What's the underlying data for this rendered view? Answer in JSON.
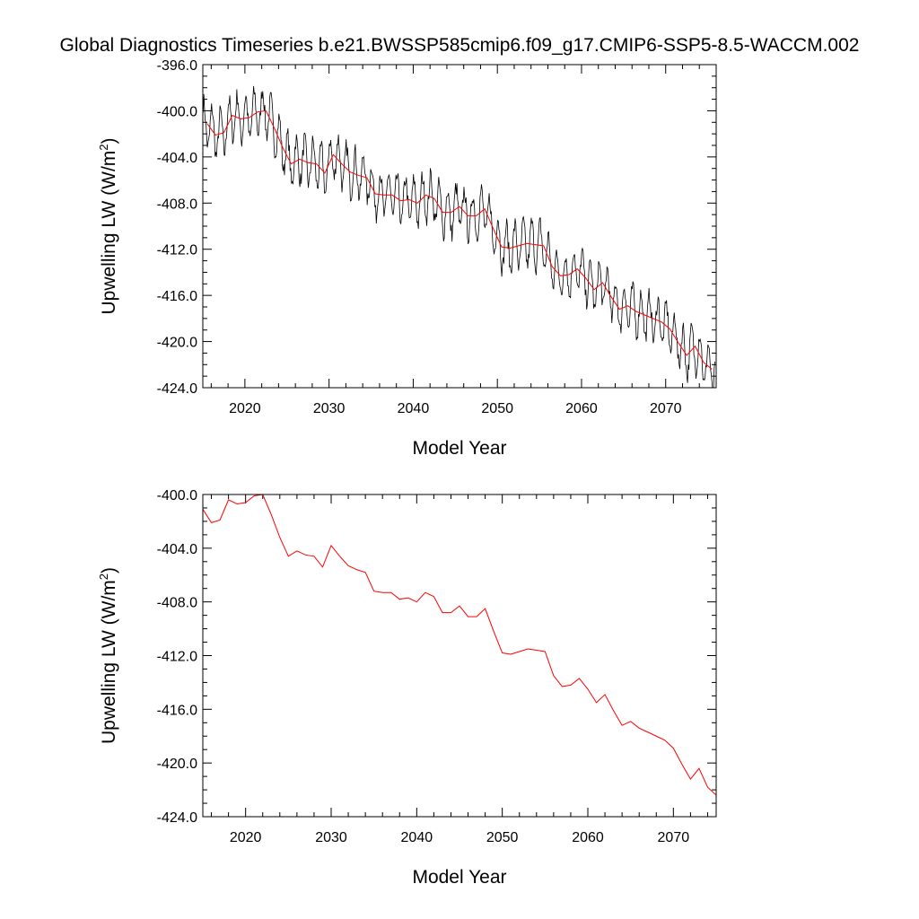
{
  "title": "Global Diagnostics Timeseries b.e21.BWSSP585cmip6.f09_g17.CMIP6-SSP5-8.5-WACCM.002",
  "colors": {
    "monthly": "#000000",
    "annual": "#ff0000"
  },
  "chart_data": [
    {
      "type": "line",
      "xlabel": "Model Year",
      "ylabel_main": "Upwelling LW (W/m",
      "ylabel_sup": "2",
      "ylabel_tail": ")",
      "xlim": [
        2015,
        2076
      ],
      "ylim": [
        -424,
        -396
      ],
      "xticks": [
        2020,
        2030,
        2040,
        2050,
        2060,
        2070
      ],
      "xtick_labels": [
        "2020",
        "2030",
        "2040",
        "2050",
        "2060",
        "2070"
      ],
      "yticks": [
        -424,
        -420,
        -416,
        -412,
        -408,
        -404,
        -400,
        -396
      ],
      "ytick_labels": [
        "-424.0",
        "-420.0",
        "-416.0",
        "-412.0",
        "-408.0",
        "-404.0",
        "-400.0",
        "-396.0"
      ],
      "series": [
        {
          "name": "monthly",
          "style": "black-thin",
          "seasonal_amplitude": 1.9,
          "x_start": 2015.04,
          "x_step": 0.0833,
          "n_points": 731,
          "follows": "annual"
        },
        {
          "name": "annual",
          "style": "red-thin",
          "x": [
            2015.5,
            2016.5,
            2017.5,
            2018.5,
            2019.5,
            2020.5,
            2021.5,
            2022.5,
            2023.5,
            2024.5,
            2025.5,
            2026.5,
            2027.5,
            2028.5,
            2029.5,
            2030.5,
            2031.5,
            2032.5,
            2033.5,
            2034.5,
            2035.5,
            2036.5,
            2037.5,
            2038.5,
            2039.5,
            2040.5,
            2041.5,
            2042.5,
            2043.5,
            2044.5,
            2045.5,
            2046.5,
            2047.5,
            2048.5,
            2049.5,
            2050.5,
            2051.5,
            2052.5,
            2053.5,
            2054.5,
            2055.5,
            2056.5,
            2057.5,
            2058.5,
            2059.5,
            2060.5,
            2061.5,
            2062.5,
            2063.5,
            2064.5,
            2065.5,
            2066.5,
            2067.5,
            2068.5,
            2069.5,
            2070.5,
            2071.5,
            2072.5,
            2073.5,
            2074.5,
            2075.5
          ],
          "y": [
            -401.1,
            -402.1,
            -401.9,
            -400.4,
            -400.7,
            -400.6,
            -400.1,
            -400.0,
            -401.5,
            -403.2,
            -404.6,
            -404.2,
            -404.5,
            -404.6,
            -405.4,
            -403.8,
            -404.6,
            -405.3,
            -405.6,
            -405.8,
            -407.2,
            -407.3,
            -407.3,
            -407.8,
            -407.7,
            -408.0,
            -407.3,
            -407.6,
            -408.8,
            -408.8,
            -408.3,
            -409.1,
            -409.1,
            -408.5,
            -410.2,
            -411.8,
            -411.9,
            -411.7,
            -411.5,
            -411.6,
            -411.7,
            -413.5,
            -414.3,
            -414.2,
            -413.7,
            -414.5,
            -415.5,
            -414.9,
            -416.1,
            -417.2,
            -416.9,
            -417.4,
            -417.7,
            -418.0,
            -418.3,
            -418.9,
            -420.1,
            -421.2,
            -420.4,
            -421.8,
            -422.4
          ]
        }
      ]
    },
    {
      "type": "line",
      "xlabel": "Model Year",
      "ylabel_main": "Upwelling LW (W/m",
      "ylabel_sup": "2",
      "ylabel_tail": ")",
      "xlim": [
        2015,
        2075
      ],
      "ylim": [
        -424,
        -400
      ],
      "xticks": [
        2020,
        2030,
        2040,
        2050,
        2060,
        2070
      ],
      "xtick_labels": [
        "2020",
        "2030",
        "2040",
        "2050",
        "2060",
        "2070"
      ],
      "yticks": [
        -424,
        -420,
        -416,
        -412,
        -408,
        -404,
        -400
      ],
      "ytick_labels": [
        "-424.0",
        "-420.0",
        "-416.0",
        "-412.0",
        "-408.0",
        "-404.0",
        "-400.0"
      ],
      "series": [
        {
          "name": "annual",
          "style": "red-thin",
          "x": [
            2015,
            2016,
            2017,
            2018,
            2019,
            2020,
            2021,
            2022,
            2023,
            2024,
            2025,
            2026,
            2027,
            2028,
            2029,
            2030,
            2031,
            2032,
            2033,
            2034,
            2035,
            2036,
            2037,
            2038,
            2039,
            2040,
            2041,
            2042,
            2043,
            2044,
            2045,
            2046,
            2047,
            2048,
            2049,
            2050,
            2051,
            2052,
            2053,
            2054,
            2055,
            2056,
            2057,
            2058,
            2059,
            2060,
            2061,
            2062,
            2063,
            2064,
            2065,
            2066,
            2067,
            2068,
            2069,
            2070,
            2071,
            2072,
            2073,
            2074,
            2075
          ],
          "y": [
            -401.1,
            -402.1,
            -401.9,
            -400.4,
            -400.7,
            -400.6,
            -400.1,
            -400.0,
            -401.5,
            -403.2,
            -404.6,
            -404.2,
            -404.5,
            -404.6,
            -405.4,
            -403.8,
            -404.6,
            -405.3,
            -405.6,
            -405.8,
            -407.2,
            -407.3,
            -407.3,
            -407.8,
            -407.7,
            -408.0,
            -407.3,
            -407.6,
            -408.8,
            -408.8,
            -408.3,
            -409.1,
            -409.1,
            -408.5,
            -410.2,
            -411.8,
            -411.9,
            -411.7,
            -411.5,
            -411.6,
            -411.7,
            -413.5,
            -414.3,
            -414.2,
            -413.7,
            -414.5,
            -415.5,
            -414.9,
            -416.1,
            -417.2,
            -416.9,
            -417.4,
            -417.7,
            -418.0,
            -418.3,
            -418.9,
            -420.1,
            -421.2,
            -420.4,
            -421.8,
            -422.4
          ]
        }
      ]
    }
  ]
}
